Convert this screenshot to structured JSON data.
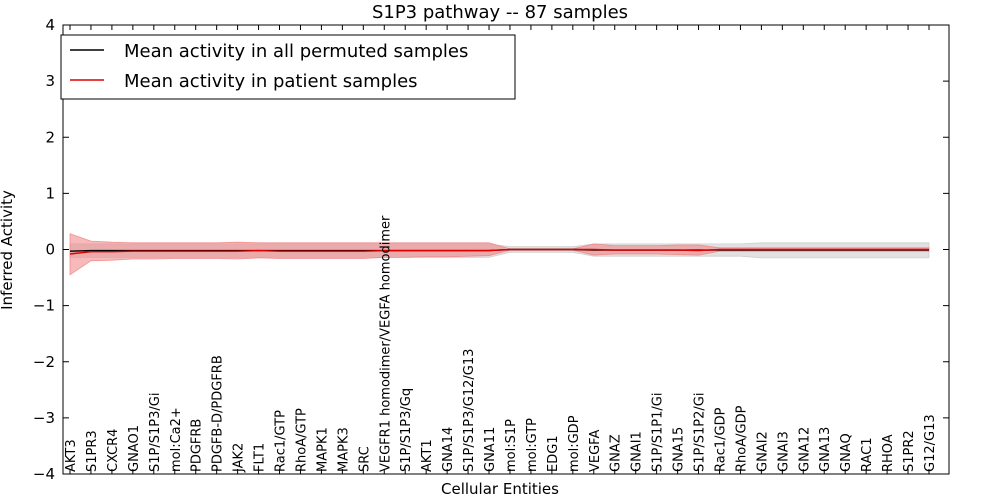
{
  "chart_data": {
    "type": "line",
    "title": "S1P3 pathway -- 87 samples",
    "xlabel": "Cellular Entities",
    "ylabel": "Inferred Activity",
    "ylim": [
      -4,
      4
    ],
    "yticks": [
      -4,
      -3,
      -2,
      -1,
      0,
      1,
      2,
      3,
      4
    ],
    "ytick_labels": [
      "−4",
      "−3",
      "−2",
      "−1",
      "0",
      "1",
      "2",
      "3",
      "4"
    ],
    "grid": false,
    "legend_position": "top-left",
    "categories": [
      "AKT3",
      "S1PR3",
      "CXCR4",
      "GNAO1",
      "S1P/S1P3/Gi",
      "mol:Ca2+",
      "PDGFRB",
      "PDGFB-D/PDGFRB",
      "JAK2",
      "FLT1",
      "Rac1/GTP",
      "RhoA/GTP",
      "MAPK1",
      "MAPK3",
      "SRC",
      "VEGFR1 homodimer/VEGFA homodimer",
      "S1P/S1P3/Gq",
      "AKT1",
      "GNA14",
      "S1P/S1P3/G12/G13",
      "GNA11",
      "mol:S1P",
      "mol:GTP",
      "EDG1",
      "mol:GDP",
      "VEGFA",
      "GNAZ",
      "GNAI1",
      "S1P/S1P1/Gi",
      "GNA15",
      "S1P/S1P2/Gi",
      "Rac1/GDP",
      "RhoA/GDP",
      "GNAI2",
      "GNAI3",
      "GNA12",
      "GNA13",
      "GNAQ",
      "RAC1",
      "RHOA",
      "S1PR2",
      "G12/G13"
    ],
    "series": [
      {
        "name": "Mean activity in all permuted samples",
        "color": "#000000",
        "band_color": "#c8c8c8",
        "values": [
          -0.03,
          -0.02,
          -0.02,
          -0.02,
          -0.02,
          -0.02,
          -0.02,
          -0.02,
          -0.02,
          -0.02,
          -0.02,
          -0.02,
          -0.02,
          -0.02,
          -0.02,
          -0.02,
          -0.02,
          -0.02,
          -0.02,
          -0.02,
          -0.02,
          0.0,
          0.0,
          0.0,
          0.0,
          -0.01,
          -0.01,
          -0.01,
          -0.01,
          -0.01,
          -0.01,
          -0.01,
          -0.01,
          -0.01,
          -0.01,
          -0.01,
          -0.01,
          -0.01,
          -0.01,
          -0.01,
          -0.01,
          -0.01
        ],
        "upper": [
          0.1,
          0.1,
          0.1,
          0.1,
          0.1,
          0.1,
          0.1,
          0.1,
          0.1,
          0.1,
          0.1,
          0.1,
          0.1,
          0.1,
          0.1,
          0.1,
          0.1,
          0.1,
          0.1,
          0.1,
          0.1,
          0.05,
          0.05,
          0.05,
          0.05,
          0.1,
          0.1,
          0.1,
          0.1,
          0.1,
          0.1,
          0.1,
          0.1,
          0.12,
          0.12,
          0.12,
          0.12,
          0.12,
          0.12,
          0.12,
          0.12,
          0.12
        ],
        "lower": [
          -0.14,
          -0.14,
          -0.14,
          -0.14,
          -0.14,
          -0.14,
          -0.14,
          -0.14,
          -0.14,
          -0.14,
          -0.14,
          -0.14,
          -0.14,
          -0.14,
          -0.14,
          -0.14,
          -0.14,
          -0.14,
          -0.14,
          -0.14,
          -0.14,
          -0.05,
          -0.05,
          -0.05,
          -0.05,
          -0.12,
          -0.12,
          -0.12,
          -0.12,
          -0.12,
          -0.12,
          -0.12,
          -0.12,
          -0.15,
          -0.15,
          -0.15,
          -0.15,
          -0.15,
          -0.15,
          -0.15,
          -0.15,
          -0.15
        ]
      },
      {
        "name": "Mean activity in patient samples",
        "color": "#e00000",
        "band_color": "#f08080",
        "values": [
          -0.08,
          -0.04,
          -0.04,
          -0.03,
          -0.03,
          -0.03,
          -0.03,
          -0.03,
          -0.03,
          -0.02,
          -0.03,
          -0.03,
          -0.03,
          -0.03,
          -0.03,
          -0.02,
          -0.02,
          -0.02,
          -0.02,
          -0.02,
          -0.02,
          0.0,
          0.0,
          0.0,
          0.0,
          0.0,
          -0.01,
          -0.01,
          -0.01,
          -0.01,
          -0.02,
          0.0,
          0.0,
          0.0,
          0.0,
          0.0,
          0.0,
          0.0,
          0.0,
          0.0,
          0.0,
          0.0
        ],
        "upper": [
          0.28,
          0.15,
          0.13,
          0.12,
          0.12,
          0.12,
          0.12,
          0.12,
          0.13,
          0.12,
          0.12,
          0.12,
          0.12,
          0.12,
          0.12,
          0.12,
          0.12,
          0.12,
          0.12,
          0.12,
          0.12,
          0.01,
          0.01,
          0.01,
          0.01,
          0.1,
          0.07,
          0.07,
          0.07,
          0.08,
          0.08,
          0.03,
          0.03,
          0.03,
          0.03,
          0.03,
          0.03,
          0.03,
          0.03,
          0.03,
          0.03,
          0.03
        ],
        "lower": [
          -0.45,
          -0.2,
          -0.19,
          -0.17,
          -0.17,
          -0.16,
          -0.16,
          -0.16,
          -0.17,
          -0.15,
          -0.16,
          -0.16,
          -0.16,
          -0.16,
          -0.16,
          -0.14,
          -0.14,
          -0.13,
          -0.13,
          -0.12,
          -0.11,
          -0.01,
          -0.01,
          -0.01,
          -0.01,
          -0.1,
          -0.08,
          -0.08,
          -0.08,
          -0.09,
          -0.1,
          -0.03,
          -0.03,
          -0.03,
          -0.03,
          -0.03,
          -0.03,
          -0.03,
          -0.03,
          -0.03,
          -0.03,
          -0.03
        ]
      }
    ]
  }
}
